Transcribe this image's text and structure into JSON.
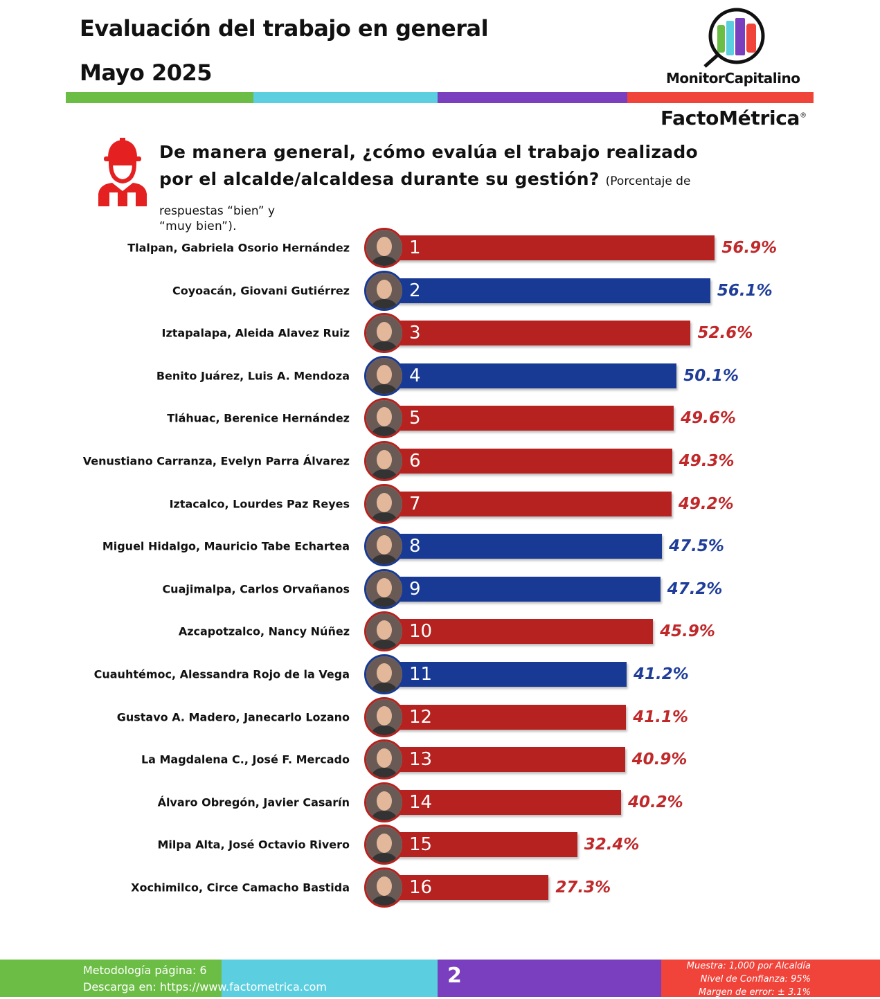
{
  "header": {
    "title": "Evaluación del trabajo en general",
    "subtitle": "Mayo 2025",
    "brand_1": "MonitorCapitalino",
    "brand_2": "FactoMétrica",
    "registered": "®",
    "strip_colors": [
      "#6cbd45",
      "#5bcfe0",
      "#7a3fbf",
      "#f0433a"
    ]
  },
  "question": {
    "text": "De manera general, ¿cómo evalúa el trabajo realizado por el alcalde/alcaldesa durante su gestión?",
    "note_1": "(Porcentaje de respuestas “bien” y",
    "note_2": "“muy bien”).",
    "icon": "worker-hardhat-icon"
  },
  "chart_data": {
    "type": "bar",
    "orientation": "horizontal",
    "unit": "%",
    "colors": {
      "red": "#b5221f",
      "blue": "#183a94"
    },
    "categories": [
      "Tlalpan, Gabriela Osorio Hernández",
      "Coyoacán, Giovani Gutiérrez",
      "Iztapalapa, Aleida Alavez Ruiz",
      "Benito Juárez, Luis A. Mendoza",
      "Tláhuac, Berenice Hernández",
      "Venustiano Carranza, Evelyn Parra Álvarez",
      "Iztacalco, Lourdes Paz Reyes",
      "Miguel Hidalgo, Mauricio Tabe Echartea",
      "Cuajimalpa, Carlos Orvañanos",
      "Azcapotzalco, Nancy Núñez",
      "Cuauhtémoc, Alessandra Rojo de la Vega",
      "Gustavo A. Madero, Janecarlo Lozano",
      "La Magdalena C., José F. Mercado",
      "Álvaro Obregón, Javier Casarín",
      "Milpa Alta, José Octavio Rivero",
      "Xochimilco, Circe Camacho Bastida"
    ],
    "ranks": [
      "1",
      "2",
      "3",
      "4",
      "5",
      "6",
      "7",
      "8",
      "9",
      "10",
      "11",
      "12",
      "13",
      "14",
      "15",
      "16"
    ],
    "values": [
      56.9,
      56.1,
      52.6,
      50.1,
      49.6,
      49.3,
      49.2,
      47.5,
      47.2,
      45.9,
      41.2,
      41.1,
      40.9,
      40.2,
      32.4,
      27.3
    ],
    "labels": [
      "56.9%",
      "56.1%",
      "52.6%",
      "50.1%",
      "49.6%",
      "49.3%",
      "49.2%",
      "47.5%",
      "47.2%",
      "45.9%",
      "41.2%",
      "41.1%",
      "40.9%",
      "40.2%",
      "32.4%",
      "27.3%"
    ],
    "bar_colors": [
      "red",
      "blue",
      "red",
      "blue",
      "red",
      "red",
      "red",
      "blue",
      "blue",
      "red",
      "blue",
      "red",
      "red",
      "red",
      "red",
      "red"
    ]
  },
  "footer": {
    "methodology": "Metodología página: 6",
    "download_prefix": "Descarga en: ",
    "download_link": "https://www.factometrica.com",
    "page_number": "2",
    "sample": "Muestra:  1,000 por Alcaldía",
    "confidence": "Nivel de Confianza: 95%",
    "error": "Margen de error: ± 3.1%",
    "colors": [
      "#6cbd45",
      "#5bcfe0",
      "#7a3fbf",
      "#f0433a"
    ]
  }
}
